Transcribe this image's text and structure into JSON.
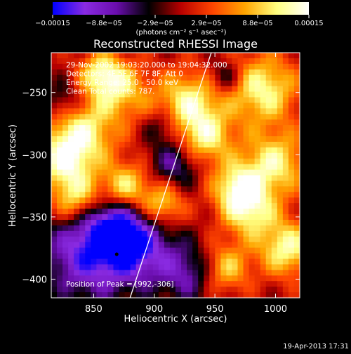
{
  "chart_data": {
    "type": "heatmap",
    "title": "Reconstructed RHESSI Image",
    "xlabel": "Heliocentric X (arcsec)",
    "ylabel": "Heliocentric Y (arcsec)",
    "xlim": [
      815,
      1020
    ],
    "ylim": [
      -415,
      -218
    ],
    "x_ticks": [
      850,
      900,
      950,
      1000
    ],
    "y_ticks": [
      -250,
      -300,
      -350,
      -400
    ],
    "x_tick_labels": [
      "850",
      "900",
      "950",
      "1000"
    ],
    "y_tick_labels": [
      "−250",
      "−300",
      "−350",
      "−400"
    ],
    "colorbar": {
      "range": [
        -0.00015,
        0.00015
      ],
      "tick_labels": [
        "−0.00015",
        "−8.8e−05",
        "−2.9e−05",
        "2.9e−05",
        "8.8e−05",
        "0.00015"
      ],
      "unit_label": "(photons cm⁻² s⁻¹ asec⁻²)",
      "colors": [
        "#0000ff",
        "#8a2be2",
        "#6a0dad",
        "#000000",
        "#b80000",
        "#ff4500",
        "#ffa500",
        "#ffff80",
        "#ffffff"
      ]
    },
    "info_lines": [
      "29-Nov-2002 19:03:20.000 to 19:04:32.000",
      "Detectors: 4F 5F 6F 7F 8F, Att 0",
      "Energy Range: 25.0 - 50.0 keV",
      "Clean     Total counts: 787."
    ],
    "peak_label": "Position of Peak = [992,-306]",
    "peak_position": [
      992,
      -306
    ],
    "limb_line": [
      [
        880,
        -415
      ],
      [
        947,
        -218
      ]
    ],
    "marker_position": [
      869,
      -380
    ],
    "background_color": "#000000"
  },
  "footer": {
    "date": "19-Apr-2013 17:31"
  }
}
